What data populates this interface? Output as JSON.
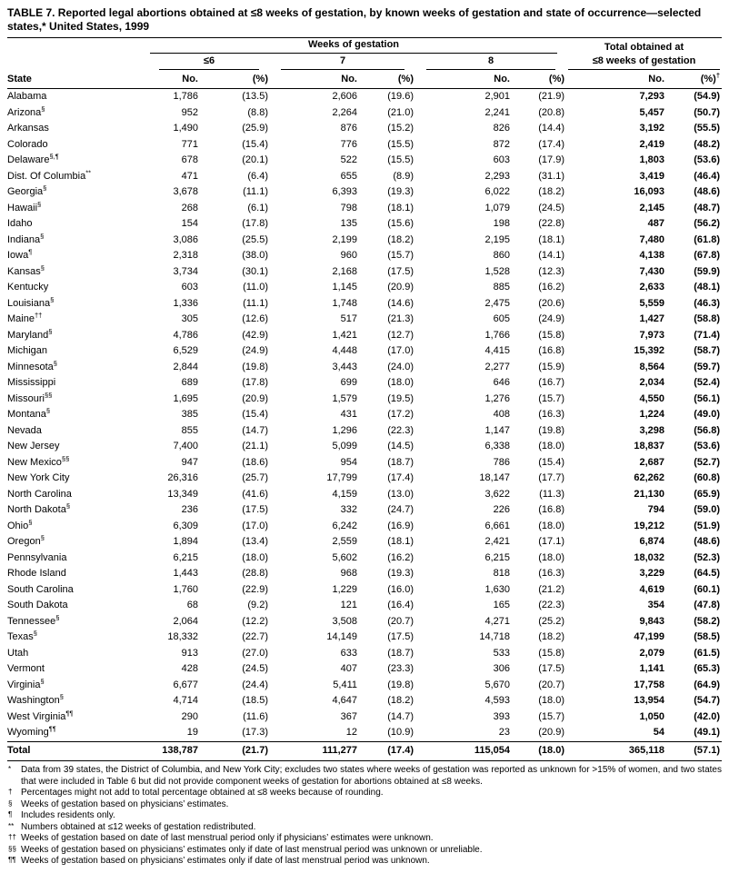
{
  "title": "TABLE 7. Reported legal abortions obtained at ≤8 weeks of gestation, by known weeks of gestation and state of occurrence—selected states,* United States, 1999",
  "header": {
    "state_col": "State",
    "group_title": "Weeks of gestation",
    "total_line1": "Total obtained at",
    "total_line2": "≤8 weeks of gestation",
    "subgroups": [
      "≤6",
      "7",
      "8"
    ],
    "no_label": "No.",
    "pct_label": "(%)",
    "total_pct_marker": "†"
  },
  "rows": [
    [
      "Alabama",
      "",
      "1,786",
      "(13.5)",
      "2,606",
      "(19.6)",
      "2,901",
      "(21.9)",
      "7,293",
      "(54.9)"
    ],
    [
      "Arizona",
      "§",
      "952",
      "(8.8)",
      "2,264",
      "(21.0)",
      "2,241",
      "(20.8)",
      "5,457",
      "(50.7)"
    ],
    [
      "Arkansas",
      "",
      "1,490",
      "(25.9)",
      "876",
      "(15.2)",
      "826",
      "(14.4)",
      "3,192",
      "(55.5)"
    ],
    [
      "Colorado",
      "",
      "771",
      "(15.4)",
      "776",
      "(15.5)",
      "872",
      "(17.4)",
      "2,419",
      "(48.2)"
    ],
    [
      "Delaware",
      "§,¶",
      "678",
      "(20.1)",
      "522",
      "(15.5)",
      "603",
      "(17.9)",
      "1,803",
      "(53.6)"
    ],
    [
      "Dist. Of Columbia",
      "**",
      "471",
      "(6.4)",
      "655",
      "(8.9)",
      "2,293",
      "(31.1)",
      "3,419",
      "(46.4)"
    ],
    [
      "Georgia",
      "§",
      "3,678",
      "(11.1)",
      "6,393",
      "(19.3)",
      "6,022",
      "(18.2)",
      "16,093",
      "(48.6)"
    ],
    [
      "Hawaii",
      "§",
      "268",
      "(6.1)",
      "798",
      "(18.1)",
      "1,079",
      "(24.5)",
      "2,145",
      "(48.7)"
    ],
    [
      "Idaho",
      "",
      "154",
      "(17.8)",
      "135",
      "(15.6)",
      "198",
      "(22.8)",
      "487",
      "(56.2)"
    ],
    [
      "Indiana",
      "§",
      "3,086",
      "(25.5)",
      "2,199",
      "(18.2)",
      "2,195",
      "(18.1)",
      "7,480",
      "(61.8)"
    ],
    [
      "Iowa",
      "¶",
      "2,318",
      "(38.0)",
      "960",
      "(15.7)",
      "860",
      "(14.1)",
      "4,138",
      "(67.8)"
    ],
    [
      "Kansas",
      "§",
      "3,734",
      "(30.1)",
      "2,168",
      "(17.5)",
      "1,528",
      "(12.3)",
      "7,430",
      "(59.9)"
    ],
    [
      "Kentucky",
      "",
      "603",
      "(11.0)",
      "1,145",
      "(20.9)",
      "885",
      "(16.2)",
      "2,633",
      "(48.1)"
    ],
    [
      "Louisiana",
      "§",
      "1,336",
      "(11.1)",
      "1,748",
      "(14.6)",
      "2,475",
      "(20.6)",
      "5,559",
      "(46.3)"
    ],
    [
      "Maine",
      "††",
      "305",
      "(12.6)",
      "517",
      "(21.3)",
      "605",
      "(24.9)",
      "1,427",
      "(58.8)"
    ],
    [
      "Maryland",
      "§",
      "4,786",
      "(42.9)",
      "1,421",
      "(12.7)",
      "1,766",
      "(15.8)",
      "7,973",
      "(71.4)"
    ],
    [
      "Michigan",
      "",
      "6,529",
      "(24.9)",
      "4,448",
      "(17.0)",
      "4,415",
      "(16.8)",
      "15,392",
      "(58.7)"
    ],
    [
      "Minnesota",
      "§",
      "2,844",
      "(19.8)",
      "3,443",
      "(24.0)",
      "2,277",
      "(15.9)",
      "8,564",
      "(59.7)"
    ],
    [
      "Mississippi",
      "",
      "689",
      "(17.8)",
      "699",
      "(18.0)",
      "646",
      "(16.7)",
      "2,034",
      "(52.4)"
    ],
    [
      "Missouri",
      "§§",
      "1,695",
      "(20.9)",
      "1,579",
      "(19.5)",
      "1,276",
      "(15.7)",
      "4,550",
      "(56.1)"
    ],
    [
      "Montana",
      "§",
      "385",
      "(15.4)",
      "431",
      "(17.2)",
      "408",
      "(16.3)",
      "1,224",
      "(49.0)"
    ],
    [
      "Nevada",
      "",
      "855",
      "(14.7)",
      "1,296",
      "(22.3)",
      "1,147",
      "(19.8)",
      "3,298",
      "(56.8)"
    ],
    [
      "New Jersey",
      "",
      "7,400",
      "(21.1)",
      "5,099",
      "(14.5)",
      "6,338",
      "(18.0)",
      "18,837",
      "(53.6)"
    ],
    [
      "New Mexico",
      "§§",
      "947",
      "(18.6)",
      "954",
      "(18.7)",
      "786",
      "(15.4)",
      "2,687",
      "(52.7)"
    ],
    [
      "New York City",
      "",
      "26,316",
      "(25.7)",
      "17,799",
      "(17.4)",
      "18,147",
      "(17.7)",
      "62,262",
      "(60.8)"
    ],
    [
      "North Carolina",
      "",
      "13,349",
      "(41.6)",
      "4,159",
      "(13.0)",
      "3,622",
      "(11.3)",
      "21,130",
      "(65.9)"
    ],
    [
      "North Dakota",
      "§",
      "236",
      "(17.5)",
      "332",
      "(24.7)",
      "226",
      "(16.8)",
      "794",
      "(59.0)"
    ],
    [
      "Ohio",
      "§",
      "6,309",
      "(17.0)",
      "6,242",
      "(16.9)",
      "6,661",
      "(18.0)",
      "19,212",
      "(51.9)"
    ],
    [
      "Oregon",
      "§",
      "1,894",
      "(13.4)",
      "2,559",
      "(18.1)",
      "2,421",
      "(17.1)",
      "6,874",
      "(48.6)"
    ],
    [
      "Pennsylvania",
      "",
      "6,215",
      "(18.0)",
      "5,602",
      "(16.2)",
      "6,215",
      "(18.0)",
      "18,032",
      "(52.3)"
    ],
    [
      "Rhode Island",
      "",
      "1,443",
      "(28.8)",
      "968",
      "(19.3)",
      "818",
      "(16.3)",
      "3,229",
      "(64.5)"
    ],
    [
      "South Carolina",
      "",
      "1,760",
      "(22.9)",
      "1,229",
      "(16.0)",
      "1,630",
      "(21.2)",
      "4,619",
      "(60.1)"
    ],
    [
      "South Dakota",
      "",
      "68",
      "(9.2)",
      "121",
      "(16.4)",
      "165",
      "(22.3)",
      "354",
      "(47.8)"
    ],
    [
      "Tennessee",
      "§",
      "2,064",
      "(12.2)",
      "3,508",
      "(20.7)",
      "4,271",
      "(25.2)",
      "9,843",
      "(58.2)"
    ],
    [
      "Texas",
      "§",
      "18,332",
      "(22.7)",
      "14,149",
      "(17.5)",
      "14,718",
      "(18.2)",
      "47,199",
      "(58.5)"
    ],
    [
      "Utah",
      "",
      "913",
      "(27.0)",
      "633",
      "(18.7)",
      "533",
      "(15.8)",
      "2,079",
      "(61.5)"
    ],
    [
      "Vermont",
      "",
      "428",
      "(24.5)",
      "407",
      "(23.3)",
      "306",
      "(17.5)",
      "1,141",
      "(65.3)"
    ],
    [
      "Virginia",
      "§",
      "6,677",
      "(24.4)",
      "5,411",
      "(19.8)",
      "5,670",
      "(20.7)",
      "17,758",
      "(64.9)"
    ],
    [
      "Washington",
      "§",
      "4,714",
      "(18.5)",
      "4,647",
      "(18.2)",
      "4,593",
      "(18.0)",
      "13,954",
      "(54.7)"
    ],
    [
      "West Virginia",
      "¶¶",
      "290",
      "(11.6)",
      "367",
      "(14.7)",
      "393",
      "(15.7)",
      "1,050",
      "(42.0)"
    ],
    [
      "Wyoming",
      "¶¶",
      "19",
      "(17.3)",
      "12",
      "(10.9)",
      "23",
      "(20.9)",
      "54",
      "(49.1)"
    ]
  ],
  "total_row": [
    "Total",
    "",
    "138,787",
    "(21.7)",
    "111,277",
    "(17.4)",
    "115,054",
    "(18.0)",
    "365,118",
    "(57.1)"
  ],
  "footnotes": [
    {
      "marker": "*",
      "text": "Data from 39 states, the District of Columbia, and New York City; excludes two states where weeks of gestation was reported as unknown for >15% of women, and two states that were included in Table 6 but did not provide component weeks of gestation for abortions obtained at ≤8 weeks."
    },
    {
      "marker": "†",
      "text": "Percentages might not add to total percentage obtained at ≤8 weeks because of rounding."
    },
    {
      "marker": "§",
      "text": "Weeks of gestation based on physicians’ estimates."
    },
    {
      "marker": "¶",
      "text": "Includes residents only."
    },
    {
      "marker": "**",
      "text": "Numbers obtained at ≤12 weeks of gestation redistributed."
    },
    {
      "marker": "††",
      "text": "Weeks of gestation based on date of last menstrual period only if physicians’ estimates were unknown."
    },
    {
      "marker": "§§",
      "text": "Weeks of gestation based on physicians’ estimates only if date of last menstrual period was unknown or unreliable."
    },
    {
      "marker": "¶¶",
      "text": "Weeks of gestation based on physicians’ estimates only if date of last menstrual period was unknown."
    }
  ]
}
